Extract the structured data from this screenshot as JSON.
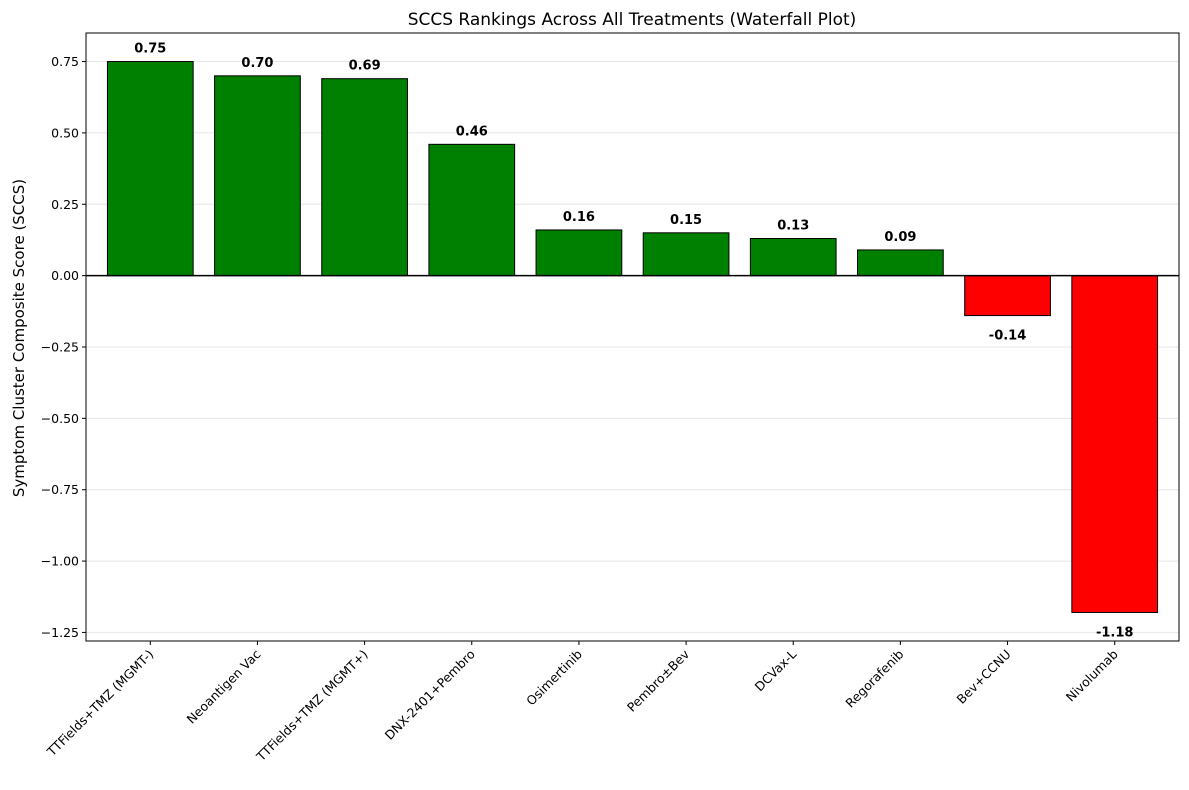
{
  "chart_data": {
    "type": "bar",
    "title": "SCCS Rankings Across All Treatments (Waterfall Plot)",
    "xlabel": "",
    "ylabel": "Symptom Cluster Composite Score (SCCS)",
    "categories": [
      "TTFields+TMZ (MGMT-)",
      "Neoantigen Vac",
      "TTFields+TMZ (MGMT+)",
      "DNX-2401+Pembro",
      "Osimertinib",
      "Pembro±Bev",
      "DCVax-L",
      "Regorafenib",
      "Bev+CCNU",
      "Nivolumab"
    ],
    "values": [
      0.75,
      0.7,
      0.69,
      0.46,
      0.16,
      0.15,
      0.13,
      0.09,
      -0.14,
      -1.18
    ],
    "data_labels": [
      "0.75",
      "0.70",
      "0.69",
      "0.46",
      "0.16",
      "0.15",
      "0.13",
      "0.09",
      "-0.14",
      "-1.18"
    ],
    "ylim": [
      -1.28,
      0.85
    ],
    "yticks": [
      0.75,
      0.5,
      0.25,
      0.0,
      -0.25,
      -0.5,
      -0.75,
      -1.0,
      -1.25
    ],
    "ytick_labels": [
      "0.75",
      "0.50",
      "0.25",
      "0.00",
      "−0.25",
      "−0.50",
      "−0.75",
      "−1.00",
      "−1.25"
    ],
    "colors": {
      "positive": "#008000",
      "negative": "#ff0000",
      "edge": "#000000",
      "zero_line": "#000000",
      "grid": "#e6e6e6"
    },
    "grid": "y",
    "legend": "none"
  }
}
